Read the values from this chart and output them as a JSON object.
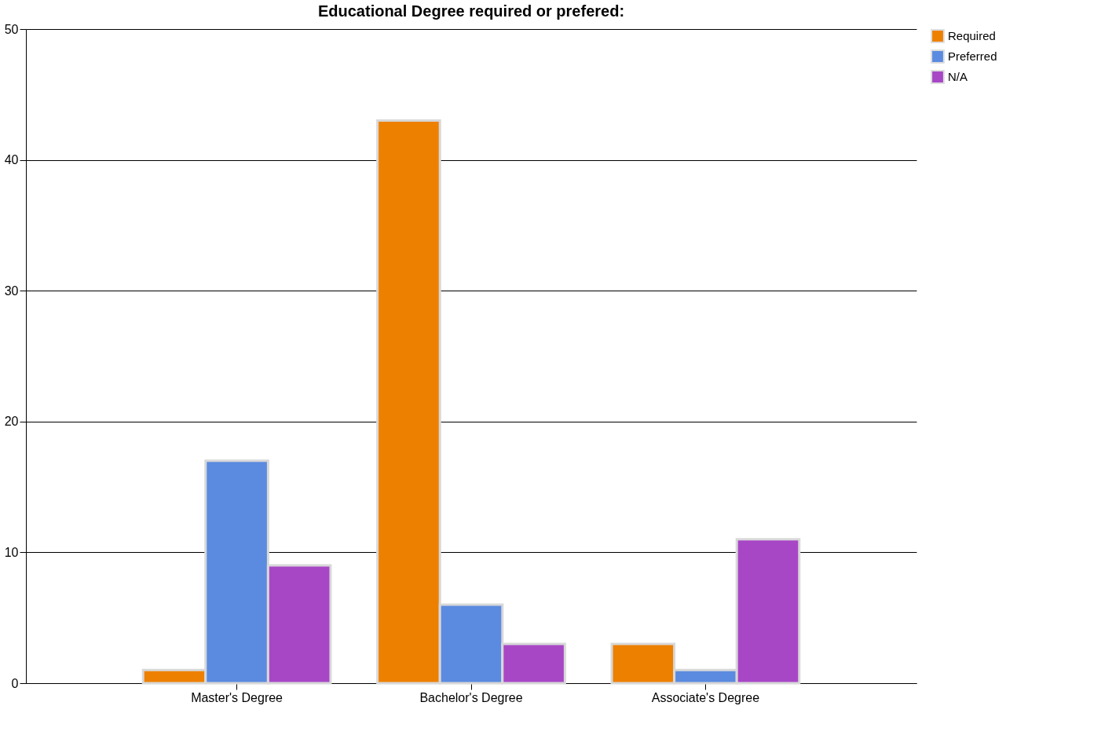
{
  "chart_data": {
    "type": "bar",
    "title": "Educational Degree required or prefered:",
    "categories": [
      "Master's Degree",
      "Bachelor's Degree",
      "Associate's Degree"
    ],
    "series": [
      {
        "name": "Required",
        "color": "#ee8000",
        "values": [
          1,
          43,
          3
        ]
      },
      {
        "name": "Preferred",
        "color": "#5b8be0",
        "values": [
          17,
          6,
          1
        ]
      },
      {
        "name": "N/A",
        "color": "#a847c6",
        "values": [
          9,
          3,
          11
        ]
      }
    ],
    "ylim": [
      0,
      50
    ],
    "yticks": [
      0,
      10,
      20,
      30,
      40,
      50
    ],
    "grid": "y",
    "legend": "right"
  }
}
